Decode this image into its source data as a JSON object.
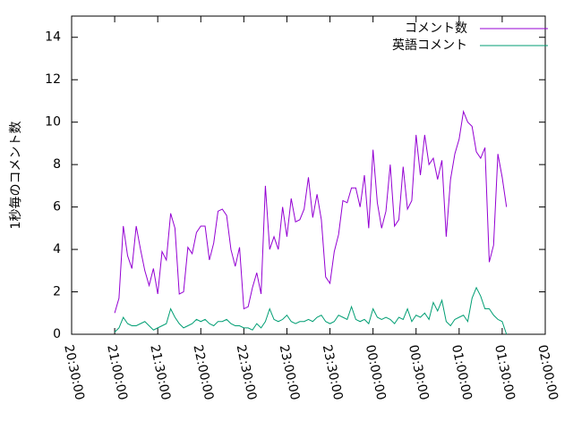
{
  "chart_data": {
    "type": "line",
    "ylabel": "1秒毎のコメント数",
    "x": [
      "21:00:00",
      "21:03:00",
      "21:06:00",
      "21:09:00",
      "21:12:00",
      "21:15:00",
      "21:18:00",
      "21:21:00",
      "21:24:00",
      "21:27:00",
      "21:30:00",
      "21:33:00",
      "21:36:00",
      "21:39:00",
      "21:42:00",
      "21:45:00",
      "21:48:00",
      "21:51:00",
      "21:54:00",
      "21:57:00",
      "22:00:00",
      "22:03:00",
      "22:06:00",
      "22:09:00",
      "22:12:00",
      "22:15:00",
      "22:18:00",
      "22:21:00",
      "22:24:00",
      "22:27:00",
      "22:30:00",
      "22:33:00",
      "22:36:00",
      "22:39:00",
      "22:42:00",
      "22:45:00",
      "22:48:00",
      "22:51:00",
      "22:54:00",
      "22:57:00",
      "23:00:00",
      "23:03:00",
      "23:06:00",
      "23:09:00",
      "23:12:00",
      "23:15:00",
      "23:18:00",
      "23:21:00",
      "23:24:00",
      "23:27:00",
      "23:30:00",
      "23:33:00",
      "23:36:00",
      "23:39:00",
      "23:42:00",
      "23:45:00",
      "23:48:00",
      "23:51:00",
      "23:54:00",
      "23:57:00",
      "00:00:00",
      "00:03:00",
      "00:06:00",
      "00:09:00",
      "00:12:00",
      "00:15:00",
      "00:18:00",
      "00:21:00",
      "00:24:00",
      "00:27:00",
      "00:30:00",
      "00:33:00",
      "00:36:00",
      "00:39:00",
      "00:42:00",
      "00:45:00",
      "00:48:00",
      "00:51:00",
      "00:54:00",
      "00:57:00",
      "01:00:00",
      "01:03:00",
      "01:06:00",
      "01:09:00",
      "01:12:00",
      "01:15:00",
      "01:18:00",
      "01:21:00",
      "01:24:00",
      "01:27:00",
      "01:30:00",
      "01:33:00"
    ],
    "series": [
      {
        "name": "コメント数",
        "color": "#9400d3",
        "values": [
          1.0,
          1.7,
          5.1,
          3.7,
          3.1,
          5.1,
          4.0,
          3.0,
          2.3,
          3.1,
          1.9,
          3.9,
          3.5,
          5.7,
          5.0,
          1.9,
          2.0,
          4.1,
          3.8,
          4.8,
          5.1,
          5.1,
          3.5,
          4.3,
          5.8,
          5.9,
          5.6,
          4.0,
          3.2,
          4.1,
          1.2,
          1.3,
          2.2,
          2.9,
          1.9,
          7.0,
          4.0,
          4.6,
          4.0,
          6.0,
          4.6,
          6.4,
          5.3,
          5.4,
          5.9,
          7.4,
          5.5,
          6.6,
          5.4,
          2.7,
          2.4,
          3.9,
          4.7,
          6.3,
          6.2,
          6.9,
          6.9,
          6.0,
          7.5,
          5.0,
          8.7,
          6.2,
          5.0,
          5.8,
          8.0,
          5.1,
          5.4,
          7.9,
          5.9,
          6.3,
          9.4,
          7.5,
          9.4,
          8.0,
          8.3,
          7.3,
          8.2,
          4.6,
          7.3,
          8.5,
          9.2,
          10.5,
          10.0,
          9.8,
          8.6,
          8.3,
          8.8,
          3.4,
          4.2,
          8.5,
          7.4,
          6.0
        ]
      },
      {
        "name": "英語コメント",
        "color": "#009e73",
        "values": [
          0.1,
          0.3,
          0.8,
          0.5,
          0.4,
          0.4,
          0.5,
          0.6,
          0.4,
          0.2,
          0.3,
          0.4,
          0.5,
          1.2,
          0.8,
          0.5,
          0.3,
          0.4,
          0.5,
          0.7,
          0.6,
          0.7,
          0.5,
          0.4,
          0.6,
          0.6,
          0.7,
          0.5,
          0.4,
          0.4,
          0.3,
          0.3,
          0.2,
          0.5,
          0.3,
          0.6,
          1.2,
          0.7,
          0.6,
          0.7,
          0.9,
          0.6,
          0.5,
          0.6,
          0.6,
          0.7,
          0.6,
          0.8,
          0.9,
          0.6,
          0.5,
          0.6,
          0.9,
          0.8,
          0.7,
          1.3,
          0.7,
          0.6,
          0.7,
          0.5,
          1.2,
          0.8,
          0.7,
          0.8,
          0.7,
          0.5,
          0.8,
          0.7,
          1.2,
          0.6,
          0.9,
          0.8,
          1.0,
          0.7,
          1.5,
          1.1,
          1.6,
          0.6,
          0.4,
          0.7,
          0.8,
          0.9,
          0.6,
          1.7,
          2.2,
          1.8,
          1.2,
          1.2,
          0.9,
          0.7,
          0.6,
          0.0
        ]
      }
    ],
    "xlim": [
      "20:30:00",
      "02:00:00"
    ],
    "xticks": [
      "20:30:00",
      "21:00:00",
      "21:30:00",
      "22:00:00",
      "22:30:00",
      "23:00:00",
      "23:30:00",
      "00:00:00",
      "00:30:00",
      "01:00:00",
      "01:30:00",
      "02:00:00"
    ],
    "ylim": [
      0,
      15
    ],
    "yticks": [
      0,
      2,
      4,
      6,
      8,
      10,
      12,
      14
    ],
    "legend": "top-right"
  }
}
